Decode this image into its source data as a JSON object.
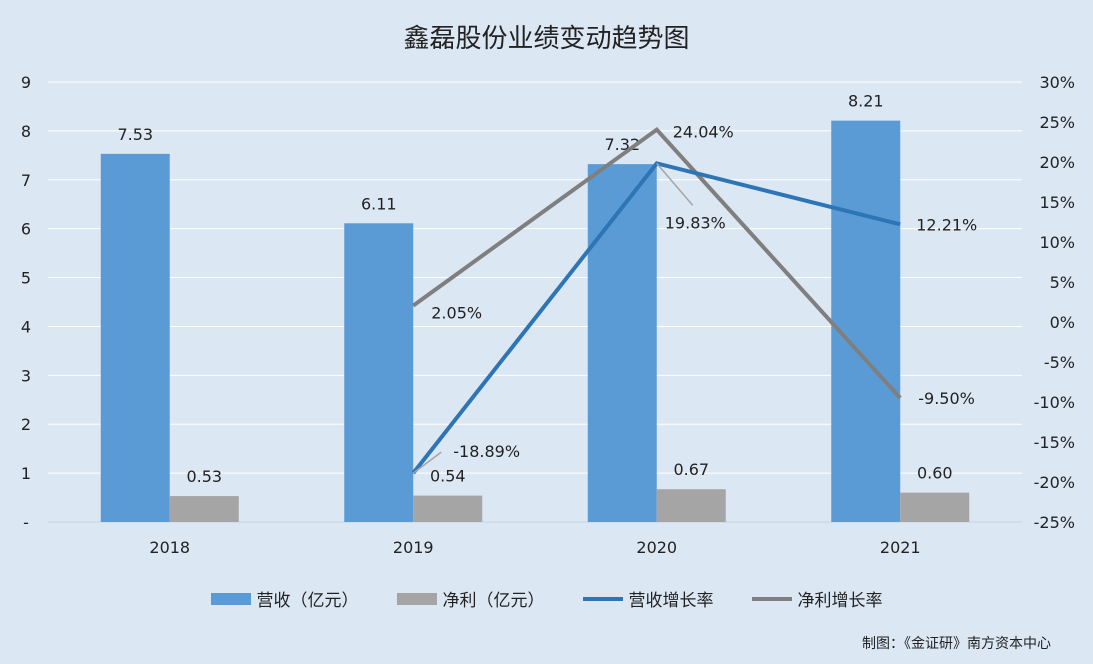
{
  "title": "鑫磊股份业绩变动趋势图",
  "credit": "制图：《金证研》南方资本中心",
  "colors": {
    "revenue_bar": "#5b9bd5",
    "profit_bar": "#a5a5a5",
    "revenue_growth_line": "#2e75b6",
    "profit_growth_line": "#7f7f7f",
    "background": "#dce7f4",
    "grid": "#ffffff"
  },
  "legend": [
    {
      "label": "营收（亿元）",
      "kind": "bar",
      "color_key": "revenue_bar"
    },
    {
      "label": "净利（亿元）",
      "kind": "bar",
      "color_key": "profit_bar"
    },
    {
      "label": "营收增长率",
      "kind": "line",
      "color_key": "revenue_growth_line"
    },
    {
      "label": "净利增长率",
      "kind": "line",
      "color_key": "profit_growth_line"
    }
  ],
  "chart_data": {
    "type": "bar",
    "categories": [
      "2018",
      "2019",
      "2020",
      "2021"
    ],
    "series": [
      {
        "name": "营收（亿元）",
        "type": "bar",
        "axis": "left",
        "values": [
          7.53,
          6.11,
          7.32,
          8.21
        ],
        "labels": [
          "7.53",
          "6.11",
          "7.32",
          "8.21"
        ]
      },
      {
        "name": "净利（亿元）",
        "type": "bar",
        "axis": "left",
        "values": [
          0.53,
          0.54,
          0.67,
          0.6
        ],
        "labels": [
          "0.53",
          "0.54",
          "0.67",
          "0.60"
        ]
      },
      {
        "name": "营收增长率",
        "type": "line",
        "axis": "right",
        "values": [
          null,
          -18.89,
          19.83,
          12.21
        ],
        "labels": [
          null,
          "-18.89%",
          "19.83%",
          "12.21%"
        ]
      },
      {
        "name": "净利增长率",
        "type": "line",
        "axis": "right",
        "values": [
          null,
          2.05,
          24.04,
          -9.5
        ],
        "labels": [
          null,
          "2.05%",
          "24.04%",
          "-9.50%"
        ]
      }
    ],
    "y_left": {
      "ylim": [
        0,
        9
      ],
      "ticks": [
        "-",
        "1",
        "2",
        "3",
        "4",
        "5",
        "6",
        "7",
        "8",
        "9"
      ]
    },
    "y_right": {
      "ylim": [
        -25,
        30
      ],
      "ticks": [
        "-25%",
        "-20%",
        "-15%",
        "-10%",
        "-5%",
        "0%",
        "5%",
        "10%",
        "15%",
        "20%",
        "25%",
        "30%"
      ]
    },
    "grid": true,
    "legend_position": "bottom"
  }
}
